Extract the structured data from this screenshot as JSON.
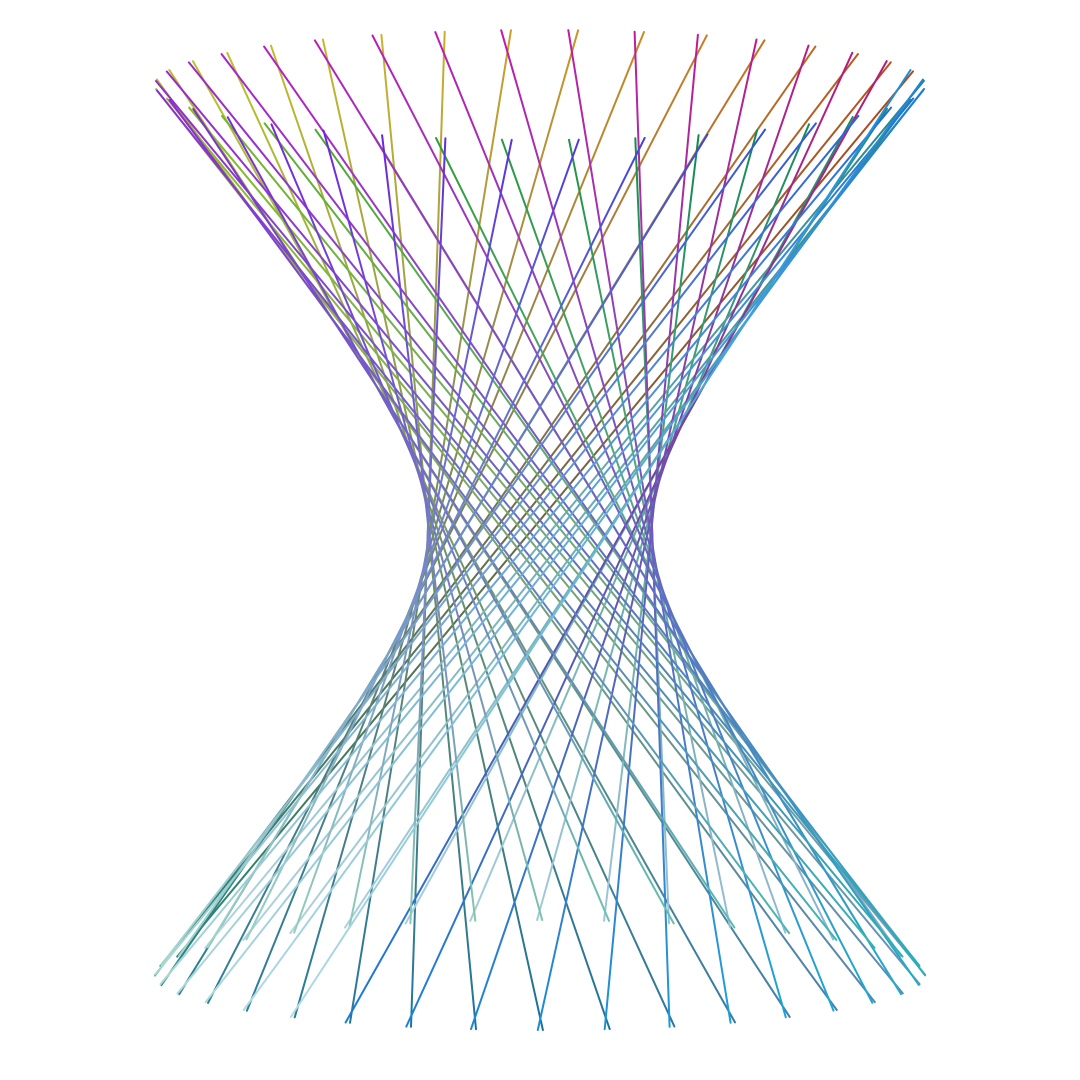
{
  "figure": {
    "subject": "hyperboloid-of-one-sheet-string-art",
    "families": [
      {
        "name": "family-a",
        "count": 36,
        "color_stops": [
          "#b5481a",
          "#c8791f",
          "#cfae2a",
          "#b9c428",
          "#8ec21f",
          "#3aa236",
          "#0f8a4a",
          "#1f8a6a",
          "#2a7fa0",
          "#1a6f9a",
          "#5a86b8",
          "#8fb4d6",
          "#a9cde0",
          "#b6d8e4"
        ]
      },
      {
        "name": "family-b",
        "count": 36,
        "color_stops": [
          "#b41a7a",
          "#c21aa0",
          "#b41fc4",
          "#8e2ad6",
          "#6a24e0",
          "#3a4ad8",
          "#1a7ad8",
          "#19a6d8",
          "#2ab3b0",
          "#7fc6a8",
          "#a6d8cc",
          "#b6dce6"
        ]
      }
    ],
    "background_color": "#ffffff"
  }
}
